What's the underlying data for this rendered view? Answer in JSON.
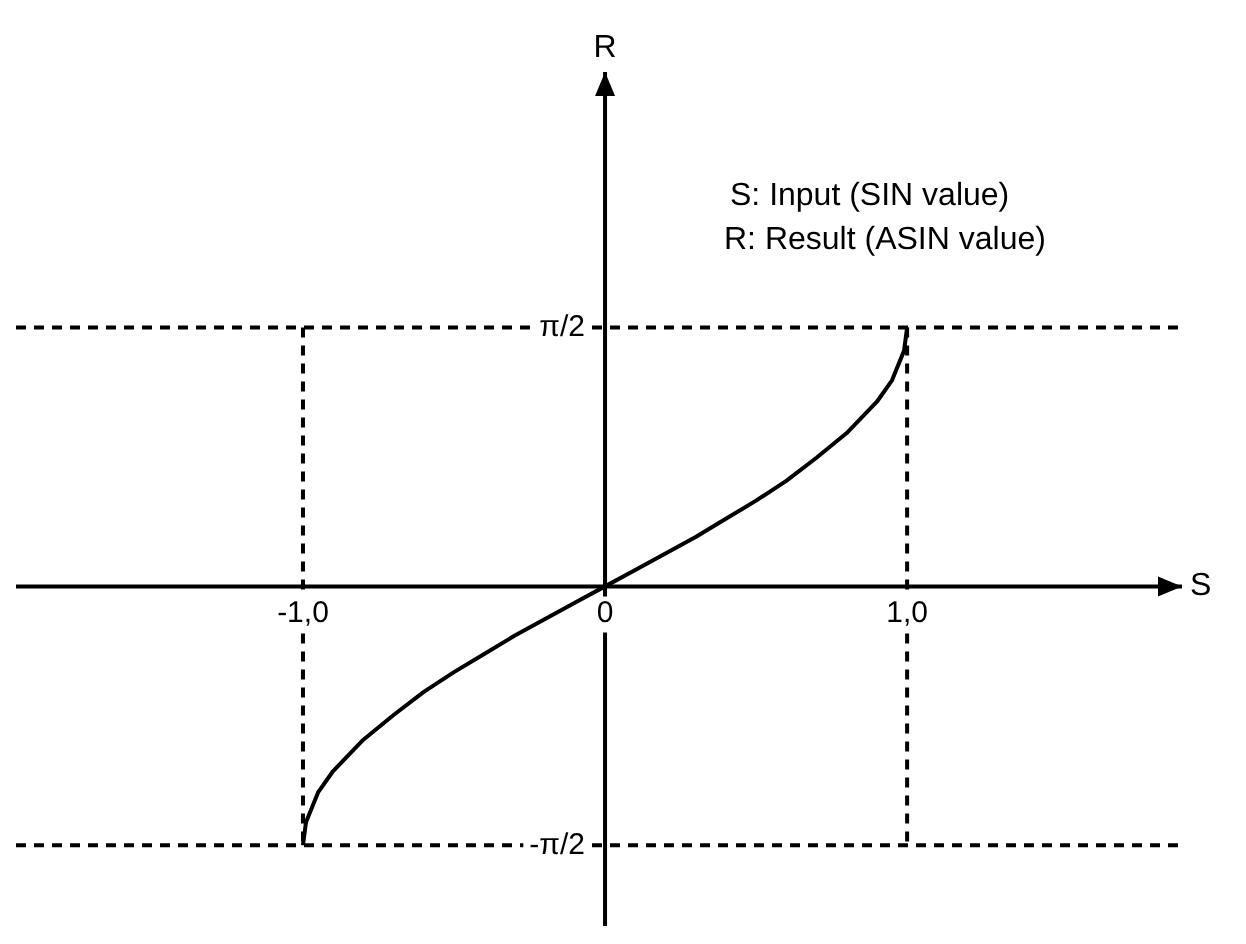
{
  "chart_data": {
    "type": "line",
    "xlabel": "S",
    "ylabel": "R",
    "annotations": [
      "S: Input (SIN value)",
      "R: Result (ASIN value)"
    ],
    "x": [
      -1,
      -0.99,
      -0.95,
      -0.9,
      -0.8,
      -0.7,
      -0.6,
      -0.5,
      -0.4,
      -0.3,
      -0.2,
      -0.1,
      0,
      0.1,
      0.2,
      0.3,
      0.4,
      0.5,
      0.6,
      0.7,
      0.8,
      0.9,
      0.95,
      0.99,
      1
    ],
    "series": [
      {
        "color": "#000000",
        "values": [
          -1.57,
          -1.43,
          -1.25,
          -1.12,
          -0.93,
          -0.78,
          -0.64,
          -0.52,
          -0.41,
          -0.3,
          -0.2,
          -0.1,
          0,
          0.1,
          0.2,
          0.3,
          0.41,
          0.52,
          0.64,
          0.78,
          0.93,
          1.12,
          1.25,
          1.43,
          1.57
        ]
      }
    ],
    "xlim": [
      -1.95,
      1.91
    ],
    "ylim": [
      -2.06,
      3.12
    ],
    "xticks": [
      {
        "value": -1,
        "label": "-1,0"
      },
      0,
      {
        "value": 1,
        "label": "1,0"
      }
    ],
    "yticks": [
      {
        "value": -1.5708,
        "label": "-π/2"
      },
      {
        "value": 1.5708,
        "label": "π/2"
      }
    ],
    "ref_lines": [
      {
        "axis": "x",
        "value": -1,
        "line_style": "dashed",
        "color": "#000000"
      },
      {
        "axis": "x",
        "value": 1,
        "line_style": "dashed",
        "color": "#000000"
      },
      {
        "axis": "y",
        "value": 1.5708,
        "line_style": "dashed",
        "color": "#000000"
      },
      {
        "axis": "y",
        "value": -1.5708,
        "line_style": "dashed",
        "color": "#000000"
      }
    ],
    "grid": false,
    "legend": false,
    "marker": "none",
    "line_style": "solid"
  }
}
